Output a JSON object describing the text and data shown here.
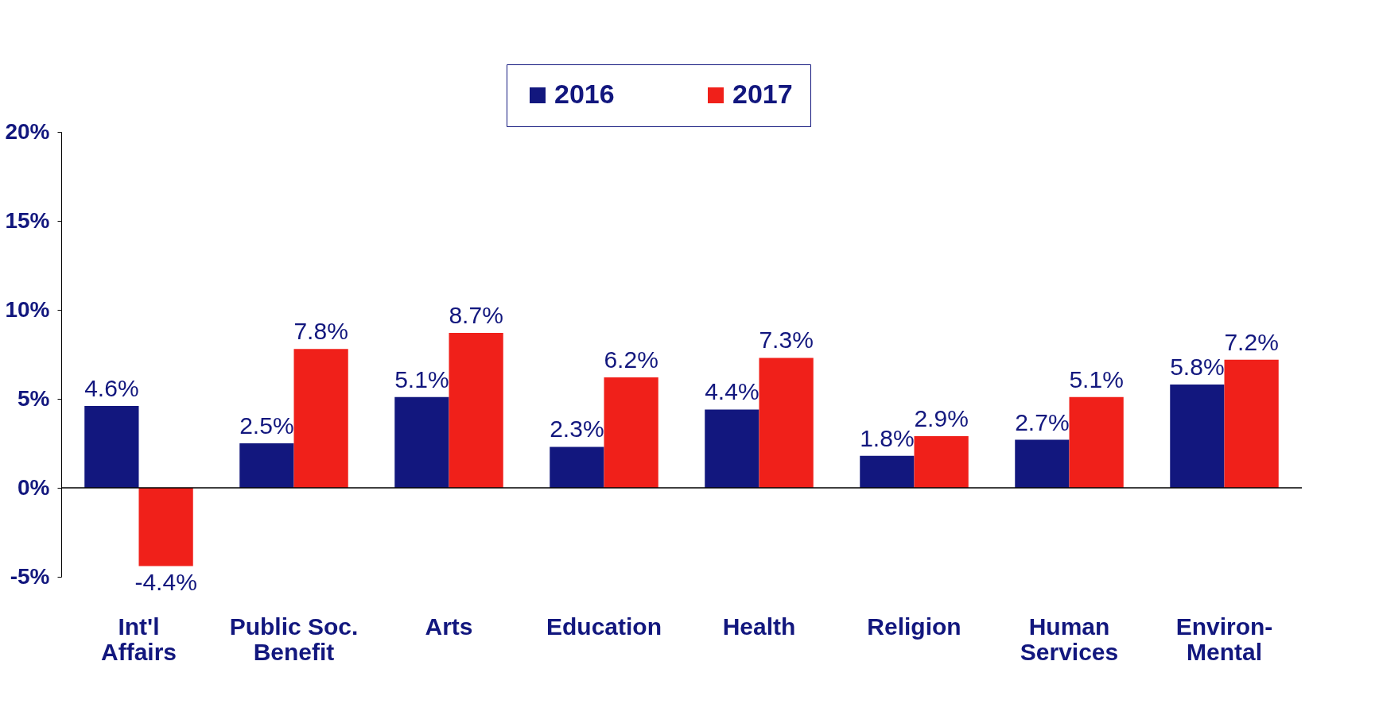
{
  "chart_data": {
    "type": "bar",
    "categories": [
      "Int'l\nAffairs",
      "Public Soc.\nBenefit",
      "Arts",
      "Education",
      "Health",
      "Religion",
      "Human\nServices",
      "Environ-\nMental"
    ],
    "series": [
      {
        "name": "2016",
        "color": "#12177e",
        "values": [
          4.6,
          2.5,
          5.1,
          2.3,
          4.4,
          1.8,
          2.7,
          5.8
        ],
        "value_labels": [
          "4.6%",
          "2.5%",
          "5.1%",
          "2.3%",
          "4.4%",
          "1.8%",
          "2.7%",
          "5.8%"
        ]
      },
      {
        "name": "2017",
        "color": "#f0201a",
        "values": [
          -4.4,
          7.8,
          8.7,
          6.2,
          7.3,
          2.9,
          5.1,
          7.2
        ],
        "value_labels": [
          "-4.4%",
          "7.8%",
          "8.7%",
          "6.2%",
          "7.3%",
          "2.9%",
          "5.1%",
          "7.2%"
        ]
      }
    ],
    "ylim": [
      -5,
      20
    ],
    "yticks": [
      {
        "value": -5,
        "label": "-5%"
      },
      {
        "value": 0,
        "label": "0%"
      },
      {
        "value": 5,
        "label": "5%"
      },
      {
        "value": 10,
        "label": "10%"
      },
      {
        "value": 15,
        "label": "15%"
      },
      {
        "value": 20,
        "label": "20%"
      }
    ],
    "ref_lines": [
      {
        "axis": "y",
        "value": 0,
        "color": "#000000"
      }
    ],
    "grid": false,
    "legend": "top"
  }
}
